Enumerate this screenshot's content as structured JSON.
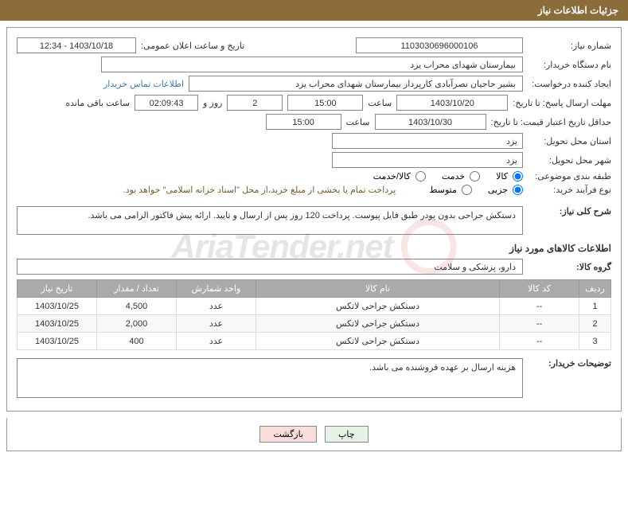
{
  "header": {
    "title": "جزئیات اطلاعات نیاز"
  },
  "fields": {
    "need_number_label": "شماره نیاز:",
    "need_number": "1103030696000106",
    "announce_label": "تاریخ و ساعت اعلان عمومی:",
    "announce_value": "1403/10/18 - 12:34",
    "buyer_org_label": "نام دستگاه خریدار:",
    "buyer_org": "بیمارستان شهدای محراب یزد",
    "requester_label": "ایجاد کننده درخواست:",
    "requester": "بشیر حاجیان نصرآبادی کارپرداز بیمارستان شهدای محراب یزد",
    "contact_link": "اطلاعات تماس خریدار",
    "deadline_label": "مهلت ارسال پاسخ: تا تاریخ:",
    "deadline_date": "1403/10/20",
    "time_label": "ساعت",
    "deadline_time": "15:00",
    "days_remaining": "2",
    "days_word": "روز و",
    "hours_remaining": "02:09:43",
    "remaining_word": "ساعت باقی مانده",
    "validity_label": "حداقل تاریخ اعتبار قیمت: تا تاریخ:",
    "validity_date": "1403/10/30",
    "validity_time": "15:00",
    "delivery_province_label": "استان محل تحویل:",
    "delivery_province": "یزد",
    "delivery_city_label": "شهر محل تحویل:",
    "delivery_city": "یزد",
    "category_label": "طبقه بندی موضوعی:",
    "cat_goods": "کالا",
    "cat_service": "خدمت",
    "cat_both": "کالا/خدمت",
    "purchase_type_label": "نوع فرآیند خرید:",
    "pt_partial": "جزیی",
    "pt_medium": "متوسط",
    "purchase_note": "پرداخت تمام یا بخشی از مبلغ خرید،از محل \"اسناد خزانه اسلامی\" خواهد بود.",
    "desc_label": "شرح کلی نیاز:",
    "desc_text": "دستکش جراحی بدون پودر طبق فایل پیوست. پرداخت 120 روز پس از ارسال و تایید. ارائه پیش فاکتور الزامی می باشد.",
    "goods_section": "اطلاعات کالاهای مورد نیاز",
    "goods_group_label": "گروه کالا:",
    "goods_group": "دارو، پزشکی و سلامت",
    "buyer_notes_label": "توضیحات خریدار:",
    "buyer_notes": "هزینه ارسال بر عهده فروشنده می باشد."
  },
  "table": {
    "headers": [
      "ردیف",
      "کد کالا",
      "نام کالا",
      "واحد شمارش",
      "تعداد / مقدار",
      "تاریخ نیاز"
    ],
    "rows": [
      [
        "1",
        "--",
        "دستکش جراحی لاتکس",
        "عدد",
        "4,500",
        "1403/10/25"
      ],
      [
        "2",
        "--",
        "دستکش جراحی لاتکس",
        "عدد",
        "2,000",
        "1403/10/25"
      ],
      [
        "3",
        "--",
        "دستکش جراحی لاتکس",
        "عدد",
        "400",
        "1403/10/25"
      ]
    ]
  },
  "buttons": {
    "print": "چاپ",
    "back": "بازگشت"
  },
  "watermark": "AriaTender.net",
  "colors": {
    "header_bg": "#8a6d3b",
    "link": "#3a7ab5",
    "note": "#7a5c2e",
    "th_bg": "#aaaaaa"
  }
}
